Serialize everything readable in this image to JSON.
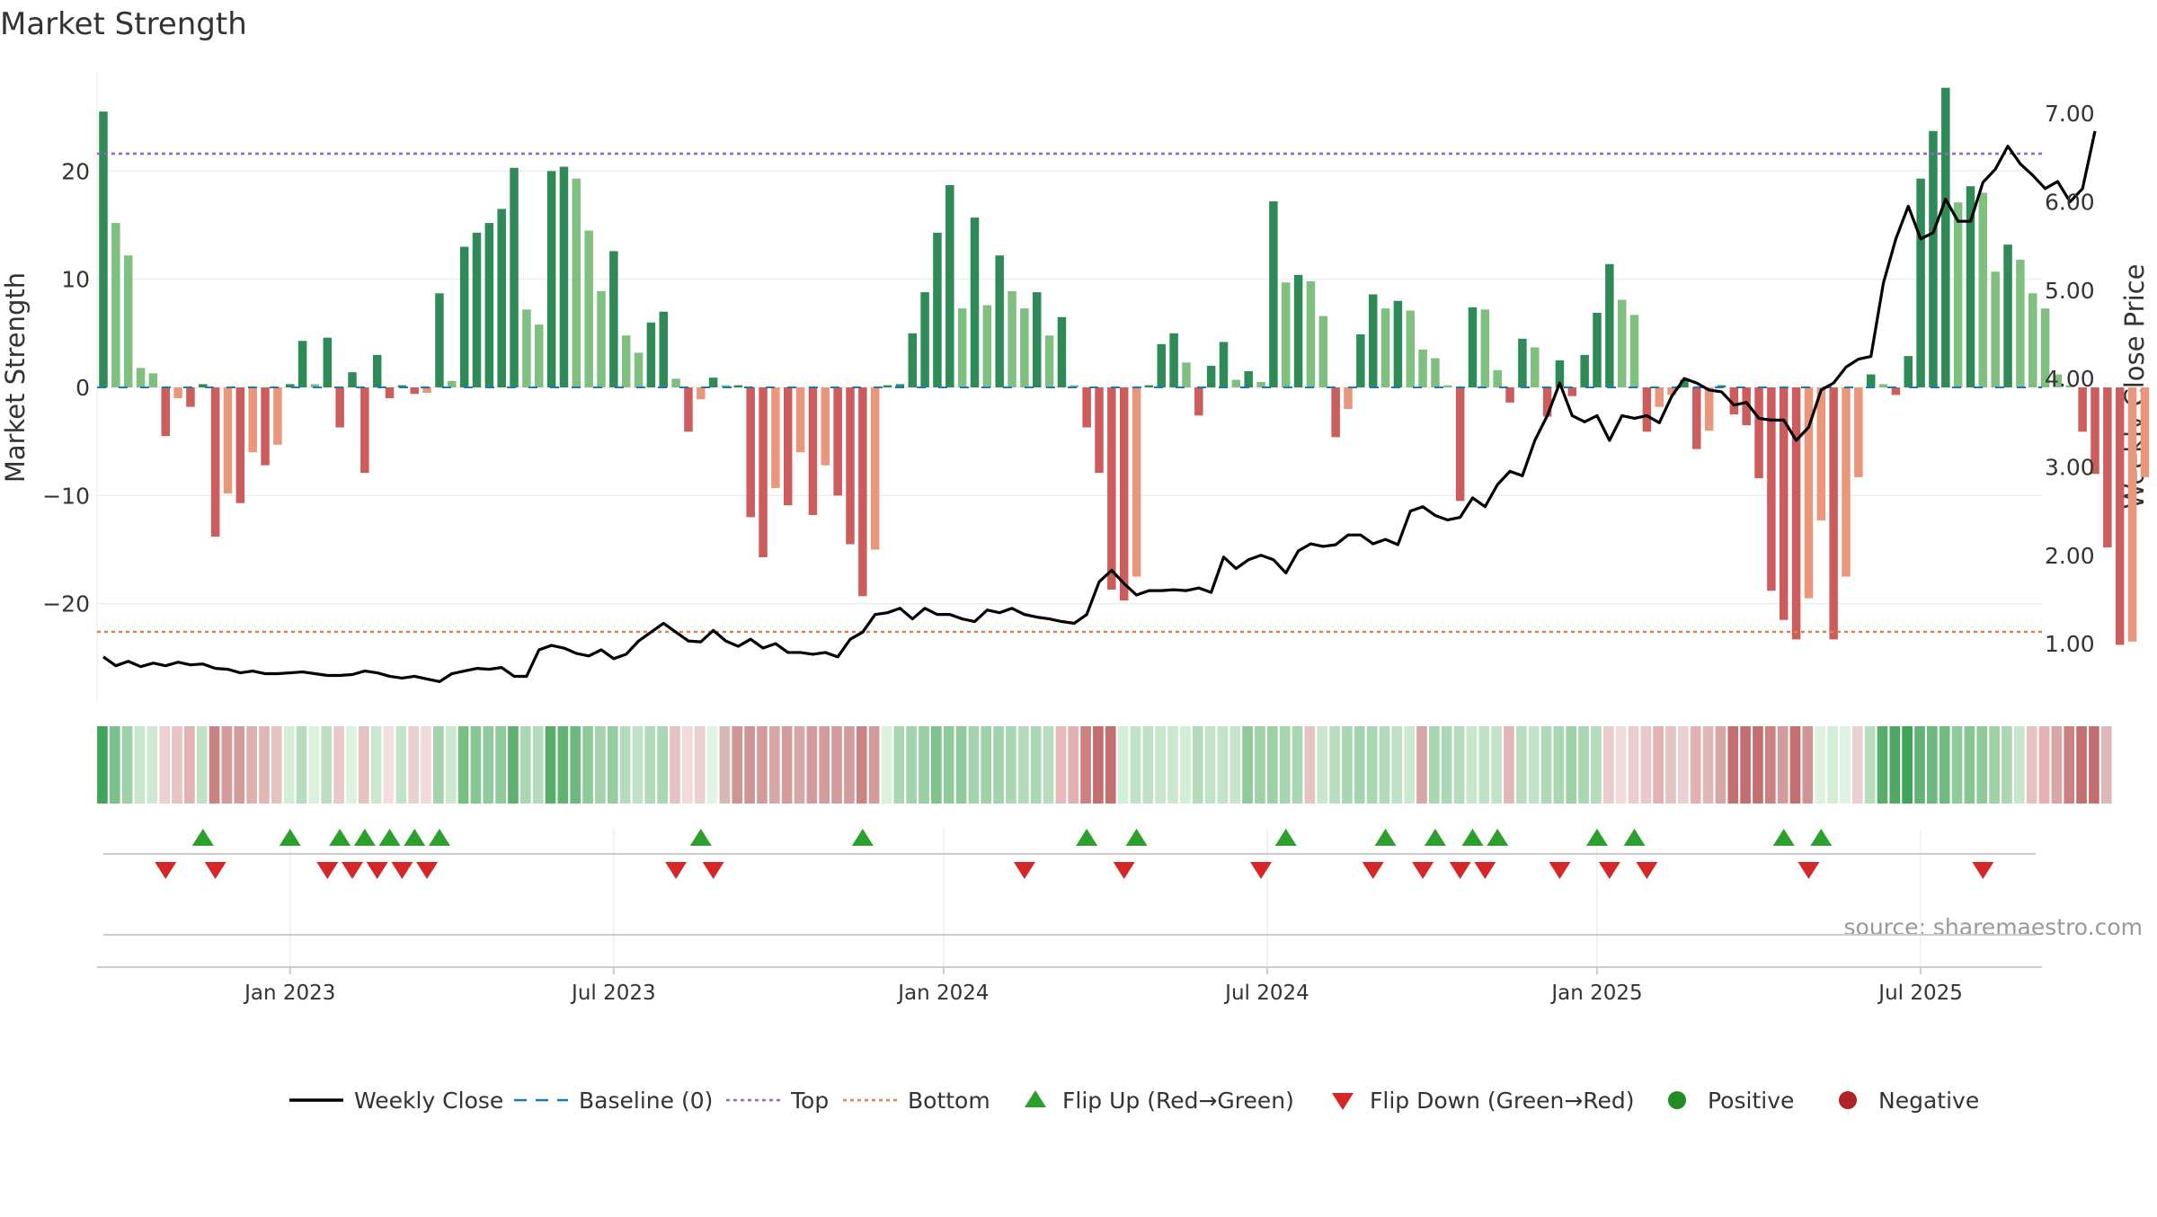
{
  "chart_data": {
    "type": "bar",
    "title": "Market Strength",
    "source": "source: sharemaestro.com",
    "left_axis": {
      "label": "Market Strength",
      "range": [
        -29,
        29
      ],
      "ticks": [
        20,
        10,
        0,
        -10,
        -20
      ],
      "tick_labels": [
        "20",
        "10",
        "0",
        "−10",
        "−20"
      ]
    },
    "right_axis": {
      "label": "Weekly Close Price",
      "range": [
        0.35,
        7.45
      ],
      "ticks": [
        7.0,
        6.0,
        5.0,
        4.0,
        3.0,
        2.0,
        1.0
      ],
      "tick_labels": [
        "7.00",
        "6.00",
        "5.00",
        "4.00",
        "3.00",
        "2.00",
        "1.00"
      ]
    },
    "x_axis": {
      "tick_indices": [
        15,
        41,
        67.5,
        93.5,
        120,
        146
      ],
      "tick_labels": [
        "Jan 2023",
        "Jul 2023",
        "Jan 2024",
        "Jul 2024",
        "Jan 2025",
        "Jul 2025"
      ]
    },
    "grid": true,
    "reference_lines": {
      "top": 21.6,
      "bottom": -22.6,
      "baseline": 0
    },
    "colors": {
      "positive_strong": "#2e8b57",
      "positive_weak": "#7fbf7f",
      "negative_strong": "#cd5c5c",
      "negative_weak": "#e9967a",
      "close_line": "#000000",
      "baseline": "#1f77b4",
      "top_line": "#9467bd",
      "bottom_line": "#dd8452",
      "flip_up": "#2ca02c",
      "flip_down": "#d62728",
      "positive_dot": "#228b22",
      "negative_dot": "#b22222"
    },
    "series": [
      {
        "name": "Market Strength",
        "values": [
          25.5,
          15.2,
          12.2,
          1.8,
          1.3,
          -4.5,
          -1.0,
          -1.8,
          0.3,
          -13.8,
          -9.8,
          -10.7,
          -6.0,
          -7.2,
          -5.3,
          0.3,
          4.3,
          0.3,
          4.6,
          -3.7,
          1.4,
          -7.9,
          3.0,
          -1.0,
          0.2,
          -0.6,
          -0.5,
          8.7,
          0.6,
          13.0,
          14.3,
          15.2,
          16.5,
          20.3,
          7.2,
          5.8,
          20.0,
          20.4,
          19.3,
          14.5,
          8.9,
          12.6,
          4.8,
          3.2,
          6.0,
          7.0,
          0.8,
          -4.1,
          -1.1,
          0.9,
          0.2,
          0.2,
          -12.0,
          -15.7,
          -9.3,
          -10.9,
          -6.0,
          -11.8,
          -7.2,
          -10.0,
          -14.5,
          -19.3,
          -15.0,
          0.2,
          0.3,
          5.0,
          8.8,
          14.3,
          18.7,
          7.3,
          15.7,
          7.6,
          12.2,
          8.9,
          7.3,
          8.8,
          4.8,
          6.5,
          0.2,
          -3.7,
          -7.9,
          -18.7,
          -19.7,
          -17.5,
          0.2,
          4.0,
          5.0,
          2.3,
          -2.6,
          2.0,
          4.2,
          0.7,
          1.5,
          0.5,
          17.2,
          9.7,
          10.4,
          9.8,
          6.6,
          -4.6,
          -2.0,
          4.9,
          8.6,
          7.3,
          8.0,
          7.1,
          3.5,
          2.7,
          0.2,
          -10.5,
          7.4,
          7.2,
          1.6,
          -1.4,
          4.5,
          3.7,
          -2.7,
          2.5,
          -0.8,
          3.0,
          6.9,
          11.4,
          8.1,
          6.7,
          -4.1,
          -1.8,
          -0.7,
          0.7,
          -5.7,
          -4.0,
          0.2,
          -2.5,
          -3.5,
          -8.4,
          -18.8,
          -21.5,
          -23.3,
          -19.5,
          -12.3,
          -23.3,
          -17.5,
          -8.3,
          1.2,
          0.3,
          -0.7,
          2.9,
          19.3,
          23.7,
          27.7,
          17.1,
          18.6,
          18.0,
          10.7,
          13.2,
          11.8,
          8.7,
          7.3,
          1.2,
          0.2,
          -4.1,
          -8.0,
          -14.8,
          -23.8,
          -23.5,
          -8.3
        ]
      },
      {
        "name": "Weekly Close",
        "values": [
          0.85,
          0.75,
          0.8,
          0.74,
          0.78,
          0.75,
          0.79,
          0.76,
          0.77,
          0.72,
          0.71,
          0.67,
          0.69,
          0.66,
          0.66,
          0.67,
          0.68,
          0.66,
          0.64,
          0.64,
          0.65,
          0.69,
          0.67,
          0.63,
          0.61,
          0.63,
          0.6,
          0.57,
          0.66,
          0.69,
          0.72,
          0.71,
          0.73,
          0.63,
          0.63,
          0.93,
          0.98,
          0.95,
          0.89,
          0.86,
          0.93,
          0.83,
          0.88,
          1.03,
          1.13,
          1.23,
          1.13,
          1.03,
          1.02,
          1.15,
          1.03,
          0.97,
          1.05,
          0.95,
          1.0,
          0.9,
          0.9,
          0.88,
          0.9,
          0.85,
          1.05,
          1.13,
          1.33,
          1.35,
          1.4,
          1.28,
          1.4,
          1.33,
          1.33,
          1.28,
          1.25,
          1.38,
          1.35,
          1.4,
          1.33,
          1.3,
          1.28,
          1.25,
          1.23,
          1.33,
          1.7,
          1.83,
          1.68,
          1.55,
          1.6,
          1.6,
          1.61,
          1.6,
          1.63,
          1.58,
          1.98,
          1.85,
          1.95,
          2.0,
          1.95,
          1.8,
          2.05,
          2.13,
          2.1,
          2.12,
          2.23,
          2.23,
          2.13,
          2.18,
          2.12,
          2.5,
          2.55,
          2.45,
          2.4,
          2.43,
          2.65,
          2.55,
          2.8,
          2.95,
          2.9,
          3.3,
          3.58,
          3.95,
          3.58,
          3.51,
          3.58,
          3.3,
          3.58,
          3.55,
          3.58,
          3.5,
          3.8,
          4.0,
          3.95,
          3.87,
          3.85,
          3.7,
          3.73,
          3.55,
          3.53,
          3.53,
          3.3,
          3.45,
          3.87,
          3.95,
          4.13,
          4.22,
          4.25,
          5.08,
          5.58,
          5.95,
          5.58,
          5.65,
          6.03,
          5.78,
          5.78,
          6.22,
          6.37,
          6.63,
          6.43,
          6.3,
          6.15,
          6.23,
          6.0,
          6.15,
          6.8
        ]
      }
    ],
    "strip": {
      "colors": [
        "#3fa55b",
        "#7cc18b",
        "#9ed1a6",
        "#c8e6cc",
        "#cfe8d3",
        "#efd0d0",
        "#e8c4c4",
        "#e3b1b1",
        "#bfe1c5",
        "#c98383",
        "#d39b9b",
        "#d39b9b",
        "#ddb0b0",
        "#e0b6b6",
        "#e6c3c3",
        "#d2eed6",
        "#b7ddbe",
        "#dbf1de",
        "#bcdfc2",
        "#e9c9c9",
        "#dcf2df",
        "#e6c3c3",
        "#cbe7cf",
        "#f2dede",
        "#c3e3c8",
        "#ead0d0",
        "#f2dada",
        "#a4d4ad",
        "#cbe7cf",
        "#78bf86",
        "#86c693",
        "#91cb9d",
        "#8fca9b",
        "#5fb072",
        "#a9d7b1",
        "#b4dbbb",
        "#58ad6b",
        "#62b274",
        "#6db87e",
        "#8dc999",
        "#a3d3ac",
        "#95cda1",
        "#b5dcbc",
        "#bfe1c5",
        "#b1dab9",
        "#aad7b3",
        "#e6c3c3",
        "#f2dada",
        "#ead0d0",
        "#e2f4e5",
        "#d9b6b6",
        "#cf9595",
        "#cf9595",
        "#d39b9b",
        "#d7a7a7",
        "#d39b9b",
        "#d7a7a7",
        "#d39b9b",
        "#d39b9b",
        "#d39b9b",
        "#d39b9b",
        "#c98383",
        "#d39b9b",
        "#dcf2df",
        "#a9d7b1",
        "#a3d3ac",
        "#97cea2",
        "#7fc28c",
        "#8fca9b",
        "#8fca9b",
        "#a3d3ac",
        "#9ed1a6",
        "#a3d3ac",
        "#a9d7b1",
        "#b2dbb9",
        "#abd8b4",
        "#b8ddbe",
        "#e7b9b9",
        "#e1b0b0",
        "#cc8080",
        "#c46f6f",
        "#c46f6f",
        "#d2eed6",
        "#bfe1c5",
        "#bfe1c5",
        "#c8e6cc",
        "#cbe7cf",
        "#d2eed6",
        "#b4dbbb",
        "#c3e3c8",
        "#c3e3c8",
        "#c6e5cb",
        "#8fca9b",
        "#9ed1a6",
        "#9ed1a6",
        "#a6d5af",
        "#aad7b3",
        "#e6c3c3",
        "#c8e6cc",
        "#b7ddbe",
        "#a9d7b1",
        "#a4d4ad",
        "#a9d7b1",
        "#b2dbb9",
        "#bfe1c5",
        "#cde8d1",
        "#d7a7a7",
        "#a9d7b1",
        "#abd8b4",
        "#b4dbbb",
        "#c8e6cc",
        "#bfe1c5",
        "#c3e3c8",
        "#e0b6b6",
        "#b7ddbe",
        "#c3e3c8",
        "#b0d9b8",
        "#a9d7b1",
        "#9ed1a6",
        "#a9d7b1",
        "#b4dbbb",
        "#ebcccc",
        "#f2dada",
        "#ebcccc",
        "#e9c9c9",
        "#e3b1b1",
        "#e6c3c3",
        "#ead0d0",
        "#e3b1b1",
        "#e0b6b6",
        "#d7a7a7",
        "#c46f6f",
        "#c46f6f",
        "#c46f6f",
        "#cc8080",
        "#d39b9b",
        "#c46f6f",
        "#cf9595",
        "#dcf2df",
        "#d2eed6",
        "#e0f3e3",
        "#ead0d0",
        "#b7ddbe",
        "#58ad6b",
        "#4fa864",
        "#3fa55b",
        "#62b274",
        "#6db87e",
        "#71ba82",
        "#8fca9b",
        "#86c693",
        "#8dc999",
        "#9ed1a6",
        "#a9d7b1",
        "#c8e6cc",
        "#e6c3c3",
        "#e3b1b1",
        "#d7a7a7",
        "#cc8080",
        "#c46f6f",
        "#c46f6f",
        "#e0b6b6"
      ]
    },
    "flips": {
      "up": [
        8,
        15,
        19,
        21,
        23,
        25,
        27,
        48,
        61,
        79,
        83,
        95,
        103,
        107,
        110,
        112,
        120,
        123,
        135,
        138
      ],
      "down": [
        5,
        9,
        18,
        20,
        22,
        24,
        26,
        46,
        49,
        74,
        82,
        93,
        102,
        106,
        109,
        111,
        117,
        121,
        124,
        137,
        151
      ]
    },
    "legend": [
      {
        "key": "close",
        "label": "Weekly Close"
      },
      {
        "key": "baseline",
        "label": "Baseline (0)"
      },
      {
        "key": "top",
        "label": "Top"
      },
      {
        "key": "bottom",
        "label": "Bottom"
      },
      {
        "key": "flip_up",
        "label": "Flip Up (Red→Green)"
      },
      {
        "key": "flip_down",
        "label": "Flip Down (Green→Red)"
      },
      {
        "key": "positive",
        "label": "Positive"
      },
      {
        "key": "negative",
        "label": "Negative"
      }
    ]
  }
}
